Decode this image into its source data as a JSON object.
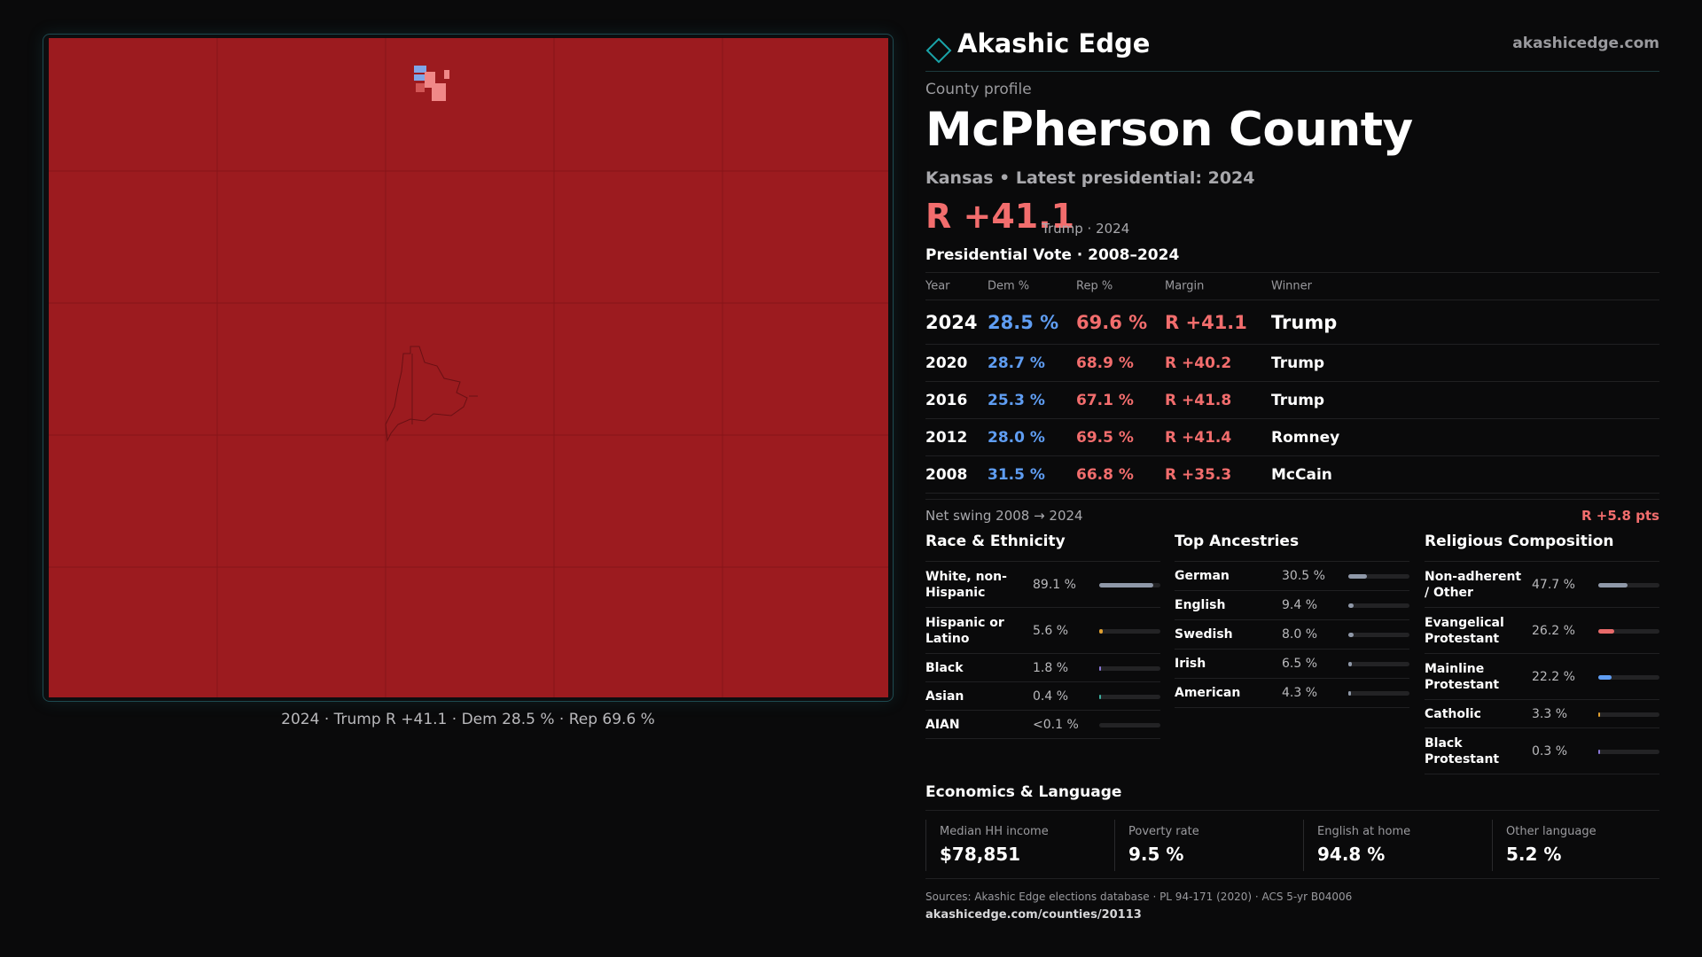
{
  "brand": {
    "name": "Akashic Edge",
    "url": "akashicedge.com"
  },
  "profile": {
    "label": "County profile",
    "county": "McPherson County",
    "subtitle": "Kansas • Latest presidential: 2024",
    "headline_margin": "R +41.1",
    "headline_sub": "Trump · 2024"
  },
  "map": {
    "caption": "2024 · Trump R +41.1 · Dem 28.5 % · Rep 69.6 %",
    "rep_color": "#9c1b1f",
    "precinct_dem_color": "#7fa6e8",
    "precinct_rep_light_color": "#f08888"
  },
  "vote": {
    "title": "Presidential Vote · 2008–2024",
    "headers": {
      "year": "Year",
      "dem": "Dem %",
      "rep": "Rep %",
      "margin": "Margin",
      "winner": "Winner"
    },
    "rows": [
      {
        "year": "2024",
        "dem": "28.5 %",
        "rep": "69.6 %",
        "margin": "R +41.1",
        "winner": "Trump"
      },
      {
        "year": "2020",
        "dem": "28.7 %",
        "rep": "68.9 %",
        "margin": "R +40.2",
        "winner": "Trump"
      },
      {
        "year": "2016",
        "dem": "25.3 %",
        "rep": "67.1 %",
        "margin": "R +41.8",
        "winner": "Trump"
      },
      {
        "year": "2012",
        "dem": "28.0 %",
        "rep": "69.5 %",
        "margin": "R +41.4",
        "winner": "Romney"
      },
      {
        "year": "2008",
        "dem": "31.5 %",
        "rep": "66.8 %",
        "margin": "R +35.3",
        "winner": "McCain"
      }
    ],
    "swing_label": "Net swing 2008 → 2024",
    "swing_value": "R +5.8 pts"
  },
  "race": {
    "title": "Race & Ethnicity",
    "items": [
      {
        "label": "White, non-Hispanic",
        "pct": "89.1 %",
        "share": 0.891,
        "color": "#8f98a8"
      },
      {
        "label": "Hispanic or Latino",
        "pct": "5.6 %",
        "share": 0.056,
        "color": "#e0a030"
      },
      {
        "label": "Black",
        "pct": "1.8 %",
        "share": 0.018,
        "color": "#8a78d8"
      },
      {
        "label": "Asian",
        "pct": "0.4 %",
        "share": 0.004,
        "color": "#3cb0a0"
      },
      {
        "label": "AIAN",
        "pct": "<0.1 %",
        "share": 0.0,
        "color": "#c07050"
      }
    ]
  },
  "ancestry": {
    "title": "Top Ancestries",
    "items": [
      {
        "label": "German",
        "pct": "30.5 %",
        "share": 0.305,
        "color": "#8f98a8"
      },
      {
        "label": "English",
        "pct": "9.4 %",
        "share": 0.094,
        "color": "#8f98a8"
      },
      {
        "label": "Swedish",
        "pct": "8.0 %",
        "share": 0.08,
        "color": "#8f98a8"
      },
      {
        "label": "Irish",
        "pct": "6.5 %",
        "share": 0.065,
        "color": "#8f98a8"
      },
      {
        "label": "American",
        "pct": "4.3 %",
        "share": 0.043,
        "color": "#8f98a8"
      }
    ]
  },
  "religion": {
    "title": "Religious Composition",
    "items": [
      {
        "label": "Non-adherent / Other",
        "pct": "47.7 %",
        "share": 0.477,
        "color": "#8f98a8"
      },
      {
        "label": "Evangelical Protestant",
        "pct": "26.2 %",
        "share": 0.262,
        "color": "#e86a6a"
      },
      {
        "label": "Mainline Protestant",
        "pct": "22.2 %",
        "share": 0.222,
        "color": "#5f9df2"
      },
      {
        "label": "Catholic",
        "pct": "3.3 %",
        "share": 0.033,
        "color": "#e0a030"
      },
      {
        "label": "Black Protestant",
        "pct": "0.3 %",
        "share": 0.003,
        "color": "#8a78d8"
      }
    ]
  },
  "economics": {
    "title": "Economics & Language",
    "items": [
      {
        "label": "Median HH income",
        "value": "$78,851"
      },
      {
        "label": "Poverty rate",
        "value": "9.5 %"
      },
      {
        "label": "English at home",
        "value": "94.8 %"
      },
      {
        "label": "Other language",
        "value": "5.2 %"
      }
    ]
  },
  "footer": {
    "sources": "Sources: Akashic Edge elections database · PL 94-171 (2020) · ACS 5-yr B04006",
    "link": "akashicedge.com/counties/20113"
  }
}
